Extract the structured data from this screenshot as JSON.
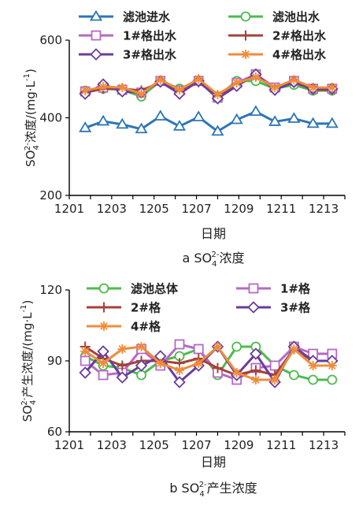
{
  "chart_data": [
    {
      "type": "line",
      "title": "",
      "caption": {
        "prefix": "a SO",
        "sub": "4",
        "sup": "2-",
        "suffix": "浓度"
      },
      "xlabel": "日期",
      "ylabel": {
        "base": "SO",
        "sub": "4",
        "sup": "2-",
        "text": "浓度/(mg·L",
        "sup2": "-1",
        "close": ")"
      },
      "ylim": [
        200,
        600
      ],
      "yticks": [
        200,
        400,
        600
      ],
      "xlim": [
        1201,
        1214
      ],
      "xticks": [
        "1201",
        "1203",
        "1205",
        "1207",
        "1209",
        "1211",
        "1213"
      ],
      "x": [
        1201.75,
        1202.6,
        1203.5,
        1204.4,
        1205.3,
        1206.2,
        1207.1,
        1208.0,
        1208.9,
        1209.8,
        1210.7,
        1211.6,
        1212.5,
        1213.4
      ],
      "legend_placement": "top",
      "series": [
        {
          "name": "滤池进水",
          "color": "#2e75b6",
          "marker": "triangle",
          "values": [
            374,
            391,
            383,
            371,
            404,
            378,
            402,
            365,
            395,
            416,
            390,
            398,
            385,
            385
          ]
        },
        {
          "name": "滤池出水",
          "color": "#4dbb4d",
          "marker": "circle",
          "values": [
            470,
            475,
            472,
            455,
            495,
            475,
            495,
            455,
            495,
            495,
            475,
            485,
            470,
            470
          ]
        },
        {
          "name": "1#格出水",
          "color": "#b569c6",
          "marker": "square",
          "values": [
            468,
            478,
            472,
            465,
            495,
            470,
            495,
            452,
            490,
            512,
            478,
            495,
            475,
            475
          ]
        },
        {
          "name": "2#格出水",
          "color": "#a64238",
          "marker": "plus",
          "values": [
            465,
            475,
            475,
            470,
            492,
            468,
            492,
            455,
            488,
            508,
            475,
            492,
            472,
            472
          ]
        },
        {
          "name": "3#格出水",
          "color": "#6a3d9a",
          "marker": "diamond",
          "values": [
            462,
            486,
            468,
            465,
            493,
            462,
            495,
            450,
            482,
            512,
            472,
            492,
            475,
            475
          ]
        },
        {
          "name": "4#格出水",
          "color": "#f08c3a",
          "marker": "star",
          "values": [
            470,
            480,
            478,
            462,
            498,
            472,
            500,
            460,
            490,
            505,
            478,
            498,
            478,
            478
          ]
        }
      ]
    },
    {
      "type": "line",
      "title": "",
      "caption": {
        "prefix": "b SO",
        "sub": "4",
        "sup": "2-",
        "suffix": "产生浓度"
      },
      "xlabel": "日期",
      "ylabel": {
        "base": "SO",
        "sub": "4",
        "sup": "2-",
        "text": "产生浓度/(mg·L",
        "sup2": "-1",
        "close": ")"
      },
      "ylim": [
        60,
        120
      ],
      "yticks": [
        60,
        90,
        120
      ],
      "xlim": [
        1201,
        1214
      ],
      "xticks": [
        "1201",
        "1203",
        "1205",
        "1207",
        "1209",
        "1211",
        "1213"
      ],
      "x": [
        1201.75,
        1202.6,
        1203.5,
        1204.4,
        1205.3,
        1206.2,
        1207.1,
        1208.0,
        1208.9,
        1209.8,
        1210.7,
        1211.6,
        1212.5,
        1213.4
      ],
      "legend_placement": "top",
      "series": [
        {
          "name": "滤池总体",
          "color": "#4dbb4d",
          "marker": "circle",
          "values": [
            92,
            88,
            87,
            84,
            90,
            92,
            95,
            84,
            96,
            96,
            88,
            84,
            82,
            82
          ]
        },
        {
          "name": "1#格",
          "color": "#b569c6",
          "marker": "square",
          "values": [
            90,
            84,
            85,
            95,
            88,
            97,
            95,
            85,
            82,
            87,
            88,
            96,
            93,
            93
          ]
        },
        {
          "name": "2#格",
          "color": "#a64238",
          "marker": "plus",
          "values": [
            96,
            91,
            88,
            90,
            90,
            89,
            91,
            87,
            84,
            86,
            84,
            95,
            90,
            90
          ]
        },
        {
          "name": "3#格",
          "color": "#6a3d9a",
          "marker": "diamond",
          "values": [
            85,
            94,
            83,
            88,
            92,
            81,
            88,
            96,
            84,
            93,
            81,
            96,
            90,
            90
          ]
        },
        {
          "name": "4#格",
          "color": "#f08c3a",
          "marker": "star",
          "values": [
            94,
            89,
            95,
            96,
            89,
            86,
            89,
            96,
            85,
            82,
            82,
            95,
            88,
            88
          ]
        }
      ]
    }
  ]
}
